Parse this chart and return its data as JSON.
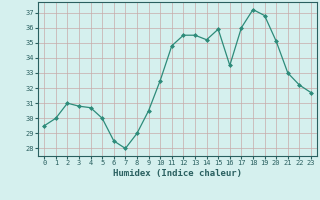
{
  "x": [
    0,
    1,
    2,
    3,
    4,
    5,
    6,
    7,
    8,
    9,
    10,
    11,
    12,
    13,
    14,
    15,
    16,
    17,
    18,
    19,
    20,
    21,
    22,
    23
  ],
  "y": [
    29.5,
    30.0,
    31.0,
    30.8,
    30.7,
    30.0,
    28.5,
    28.0,
    29.0,
    30.5,
    32.5,
    34.8,
    35.5,
    35.5,
    35.2,
    35.9,
    33.5,
    36.0,
    37.2,
    36.8,
    35.1,
    33.0,
    32.2,
    31.7
  ],
  "xlabel": "Humidex (Indice chaleur)",
  "ylim": [
    27.5,
    37.7
  ],
  "xlim": [
    -0.5,
    23.5
  ],
  "yticks": [
    28,
    29,
    30,
    31,
    32,
    33,
    34,
    35,
    36,
    37
  ],
  "xticks": [
    0,
    1,
    2,
    3,
    4,
    5,
    6,
    7,
    8,
    9,
    10,
    11,
    12,
    13,
    14,
    15,
    16,
    17,
    18,
    19,
    20,
    21,
    22,
    23
  ],
  "line_color": "#2d8b7a",
  "marker_color": "#2d8b7a",
  "bg_color": "#d5f0ee",
  "grid_color": "#c8aaaa",
  "tick_color": "#2a6060",
  "label_color": "#2a6060"
}
